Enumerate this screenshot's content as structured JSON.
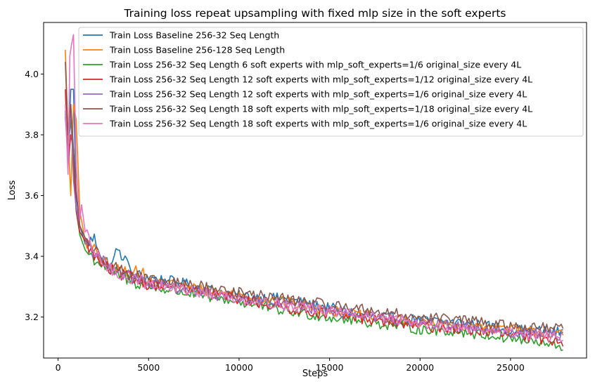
{
  "chart_data": {
    "type": "line",
    "title": "Training loss repeat upsampling with fixed mlp size in the soft experts",
    "xlabel": "Steps",
    "ylabel": "Loss",
    "xlim": [
      -800,
      29200
    ],
    "ylim": [
      3.065,
      4.17
    ],
    "xticks": [
      0,
      5000,
      10000,
      15000,
      20000,
      25000
    ],
    "yticks": [
      3.2,
      3.4,
      3.6,
      3.8,
      4.0
    ],
    "xtick_labels": [
      "0",
      "5000",
      "10000",
      "15000",
      "20000",
      "25000"
    ],
    "ytick_labels": [
      "3.2",
      "3.4",
      "3.6",
      "3.8",
      "4.0"
    ],
    "grid": false,
    "legend_position": "top-right",
    "x_start": 400,
    "x_end": 27900,
    "series": [
      {
        "name": "Train Loss Baseline 256-32 Seq Length",
        "color": "#1f77b4",
        "points": [
          [
            400,
            3.88
          ],
          [
            550,
            3.74
          ],
          [
            700,
            3.95
          ],
          [
            850,
            3.95
          ],
          [
            1000,
            3.6
          ],
          [
            1200,
            3.5
          ],
          [
            1500,
            3.44
          ],
          [
            2000,
            3.46
          ],
          [
            2500,
            3.39
          ],
          [
            3000,
            3.37
          ],
          [
            3300,
            3.44
          ],
          [
            3500,
            3.37
          ],
          [
            3700,
            3.42
          ],
          [
            4000,
            3.34
          ],
          [
            5000,
            3.33
          ],
          [
            7000,
            3.31
          ],
          [
            10000,
            3.27
          ],
          [
            12500,
            3.26
          ],
          [
            15000,
            3.23
          ],
          [
            17500,
            3.2
          ],
          [
            20000,
            3.19
          ],
          [
            22500,
            3.18
          ],
          [
            25000,
            3.16
          ],
          [
            27900,
            3.15
          ]
        ]
      },
      {
        "name": "Train Loss Baseline 256-128 Seq Length",
        "color": "#ff7f0e",
        "points": [
          [
            400,
            4.08
          ],
          [
            550,
            3.8
          ],
          [
            700,
            3.6
          ],
          [
            850,
            3.9
          ],
          [
            1000,
            3.85
          ],
          [
            1200,
            3.55
          ],
          [
            1500,
            3.45
          ],
          [
            2000,
            3.42
          ],
          [
            2500,
            3.38
          ],
          [
            3000,
            3.36
          ],
          [
            4000,
            3.34
          ],
          [
            4200,
            3.37
          ],
          [
            5000,
            3.32
          ],
          [
            7000,
            3.3
          ],
          [
            10000,
            3.27
          ],
          [
            12500,
            3.25
          ],
          [
            15000,
            3.22
          ],
          [
            17500,
            3.2
          ],
          [
            20000,
            3.18
          ],
          [
            22500,
            3.17
          ],
          [
            25000,
            3.16
          ],
          [
            27900,
            3.14
          ]
        ]
      },
      {
        "name": "Train Loss 256-32 Seq Length 6 soft experts with mlp_soft_experts=1/6 original_size every 4L",
        "color": "#2ca02c",
        "points": [
          [
            400,
            3.87
          ],
          [
            550,
            3.75
          ],
          [
            700,
            3.85
          ],
          [
            850,
            3.7
          ],
          [
            1000,
            3.55
          ],
          [
            1200,
            3.47
          ],
          [
            1500,
            3.42
          ],
          [
            2000,
            3.39
          ],
          [
            2500,
            3.37
          ],
          [
            3000,
            3.35
          ],
          [
            4000,
            3.32
          ],
          [
            5000,
            3.3
          ],
          [
            7000,
            3.28
          ],
          [
            10000,
            3.25
          ],
          [
            12500,
            3.22
          ],
          [
            15000,
            3.2
          ],
          [
            17500,
            3.18
          ],
          [
            20000,
            3.16
          ],
          [
            22500,
            3.15
          ],
          [
            25000,
            3.13
          ],
          [
            27900,
            3.1
          ]
        ]
      },
      {
        "name": "Train Loss 256-32 Seq Length 12 soft experts with mlp_soft_experts=1/12 original_size every 4L",
        "color": "#d62728",
        "points": [
          [
            400,
            3.95
          ],
          [
            550,
            3.7
          ],
          [
            700,
            3.8
          ],
          [
            850,
            3.75
          ],
          [
            1000,
            3.55
          ],
          [
            1200,
            3.48
          ],
          [
            1500,
            3.45
          ],
          [
            2000,
            3.4
          ],
          [
            2500,
            3.37
          ],
          [
            3000,
            3.35
          ],
          [
            4000,
            3.33
          ],
          [
            5000,
            3.31
          ],
          [
            7000,
            3.29
          ],
          [
            10000,
            3.26
          ],
          [
            12500,
            3.23
          ],
          [
            15000,
            3.21
          ],
          [
            17500,
            3.19
          ],
          [
            20000,
            3.17
          ],
          [
            22500,
            3.16
          ],
          [
            25000,
            3.14
          ],
          [
            27900,
            3.12
          ]
        ]
      },
      {
        "name": "Train Loss 256-32 Seq Length 12 soft experts with mlp_soft_experts=1/6 original_size every 4L",
        "color": "#9467bd",
        "points": [
          [
            400,
            3.86
          ],
          [
            550,
            3.72
          ],
          [
            700,
            3.9
          ],
          [
            850,
            3.65
          ],
          [
            1000,
            3.56
          ],
          [
            1200,
            3.5
          ],
          [
            1500,
            3.46
          ],
          [
            2000,
            3.41
          ],
          [
            2500,
            3.38
          ],
          [
            3000,
            3.36
          ],
          [
            4000,
            3.33
          ],
          [
            5000,
            3.31
          ],
          [
            7000,
            3.29
          ],
          [
            10000,
            3.26
          ],
          [
            12500,
            3.24
          ],
          [
            15000,
            3.22
          ],
          [
            17500,
            3.2
          ],
          [
            20000,
            3.18
          ],
          [
            22500,
            3.17
          ],
          [
            25000,
            3.15
          ],
          [
            27900,
            3.14
          ]
        ]
      },
      {
        "name": "Train Loss 256-32 Seq Length 18 soft experts with mlp_soft_experts=1/18 original_size every 4L",
        "color": "#8c564b",
        "points": [
          [
            400,
            4.04
          ],
          [
            550,
            3.8
          ],
          [
            700,
            3.9
          ],
          [
            850,
            3.75
          ],
          [
            1000,
            3.62
          ],
          [
            1200,
            3.5
          ],
          [
            1500,
            3.46
          ],
          [
            2000,
            3.42
          ],
          [
            2500,
            3.39
          ],
          [
            3000,
            3.37
          ],
          [
            4000,
            3.34
          ],
          [
            5000,
            3.32
          ],
          [
            7000,
            3.31
          ],
          [
            10000,
            3.28
          ],
          [
            12500,
            3.26
          ],
          [
            15000,
            3.24
          ],
          [
            17500,
            3.22
          ],
          [
            20000,
            3.2
          ],
          [
            22500,
            3.19
          ],
          [
            25000,
            3.17
          ],
          [
            27900,
            3.16
          ]
        ]
      },
      {
        "name": "Train Loss 256-32 Seq Length 18 soft experts with mlp_soft_experts=1/6 original_size every 4L",
        "color": "#e377c2",
        "points": [
          [
            400,
            3.9
          ],
          [
            550,
            3.67
          ],
          [
            650,
            4.06
          ],
          [
            750,
            4.1
          ],
          [
            850,
            4.13
          ],
          [
            1000,
            3.7
          ],
          [
            1200,
            3.52
          ],
          [
            1300,
            3.57
          ],
          [
            1500,
            3.48
          ],
          [
            2000,
            3.41
          ],
          [
            2500,
            3.38
          ],
          [
            3000,
            3.35
          ],
          [
            4000,
            3.33
          ],
          [
            5000,
            3.31
          ],
          [
            7000,
            3.29
          ],
          [
            10000,
            3.26
          ],
          [
            12500,
            3.24
          ],
          [
            15000,
            3.22
          ],
          [
            17500,
            3.2
          ],
          [
            20000,
            3.18
          ],
          [
            22500,
            3.16
          ],
          [
            25000,
            3.15
          ],
          [
            27900,
            3.13
          ]
        ]
      }
    ]
  }
}
